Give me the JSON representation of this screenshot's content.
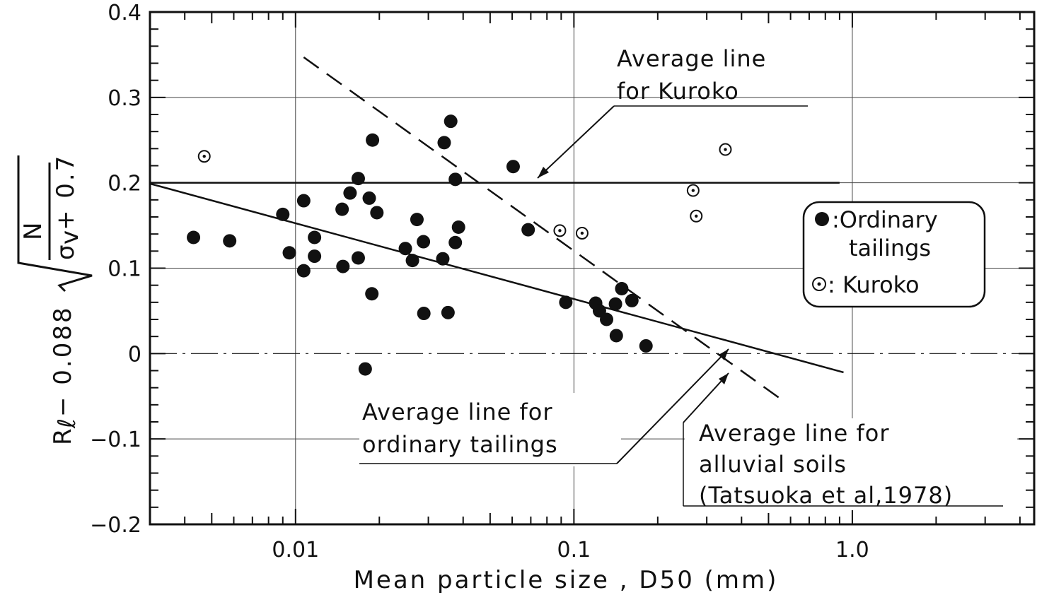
{
  "chart_data": {
    "type": "scatter",
    "xscale": "log",
    "xlim": [
      0.003,
      4.5
    ],
    "ylim": [
      -0.2,
      0.4
    ],
    "xlabel": "Mean particle size , D50  (mm)",
    "ylabel_parts": {
      "prefix": "R",
      "prefix_sub": "ℓ",
      "minus_coef": "− 0.088",
      "numerator": "N",
      "denominator_sigma": "σ",
      "denominator_sub": "v",
      "denominator_tail": "+ 0.7"
    },
    "xticks": [
      {
        "value": 0.01,
        "label": "0.01"
      },
      {
        "value": 0.1,
        "label": "0.1"
      },
      {
        "value": 1.0,
        "label": "1.0"
      }
    ],
    "yticks": [
      {
        "value": 0.4,
        "label": "0.4"
      },
      {
        "value": 0.3,
        "label": "0.3"
      },
      {
        "value": 0.2,
        "label": "0.2"
      },
      {
        "value": 0.1,
        "label": "0.1"
      },
      {
        "value": 0.0,
        "label": "0"
      },
      {
        "value": -0.1,
        "label": "−0.1"
      },
      {
        "value": -0.2,
        "label": "−0.2"
      }
    ],
    "grid": false,
    "series": [
      {
        "name": "Ordinary tailings",
        "marker": "filled-circle",
        "points": [
          [
            0.0043,
            0.136
          ],
          [
            0.0058,
            0.132
          ],
          [
            0.009,
            0.163
          ],
          [
            0.0095,
            0.118
          ],
          [
            0.0107,
            0.179
          ],
          [
            0.0107,
            0.097
          ],
          [
            0.0117,
            0.136
          ],
          [
            0.0117,
            0.114
          ],
          [
            0.0147,
            0.169
          ],
          [
            0.0148,
            0.102
          ],
          [
            0.0157,
            0.188
          ],
          [
            0.0168,
            0.205
          ],
          [
            0.0168,
            0.112
          ],
          [
            0.0178,
            -0.018
          ],
          [
            0.0184,
            0.182
          ],
          [
            0.0188,
            0.07
          ],
          [
            0.0189,
            0.25
          ],
          [
            0.0196,
            0.165
          ],
          [
            0.0248,
            0.123
          ],
          [
            0.0263,
            0.109
          ],
          [
            0.0273,
            0.157
          ],
          [
            0.0288,
            0.131
          ],
          [
            0.0289,
            0.047
          ],
          [
            0.0338,
            0.111
          ],
          [
            0.0342,
            0.247
          ],
          [
            0.0353,
            0.048
          ],
          [
            0.0361,
            0.272
          ],
          [
            0.0375,
            0.13
          ],
          [
            0.0375,
            0.204
          ],
          [
            0.0385,
            0.148
          ],
          [
            0.0605,
            0.219
          ],
          [
            0.0685,
            0.145
          ],
          [
            0.0935,
            0.06
          ],
          [
            0.1197,
            0.059
          ],
          [
            0.1235,
            0.05
          ],
          [
            0.131,
            0.04
          ],
          [
            0.141,
            0.058
          ],
          [
            0.142,
            0.021
          ],
          [
            0.1485,
            0.076
          ],
          [
            0.1615,
            0.062
          ],
          [
            0.1815,
            0.009
          ]
        ]
      },
      {
        "name": "Kuroko",
        "marker": "dotted-circle",
        "points": [
          [
            0.0047,
            0.231
          ],
          [
            0.089,
            0.144
          ],
          [
            0.107,
            0.141
          ],
          [
            0.268,
            0.191
          ],
          [
            0.275,
            0.161
          ],
          [
            0.35,
            0.239
          ]
        ]
      }
    ],
    "lines": [
      {
        "name": "Average line for Kuroko",
        "style": "solid",
        "from": [
          0.003,
          0.2
        ],
        "to": [
          0.9,
          0.2
        ]
      },
      {
        "name": "Average line for ordinary tailings",
        "style": "solid",
        "from": [
          0.003,
          0.199
        ],
        "to": [
          0.93,
          -0.022
        ]
      },
      {
        "name": "Average line for alluvial soils (Tatsuoka et al,1978)",
        "style": "dashed",
        "from": [
          0.0107,
          0.347
        ],
        "to": [
          0.58,
          -0.058
        ]
      },
      {
        "name": "zero reference",
        "style": "dash-dot",
        "from": [
          0.003,
          0.0
        ],
        "to": [
          4.5,
          0.0
        ]
      }
    ],
    "annotations": [
      {
        "id": "kuroko",
        "lines": [
          "Average line",
          "for Kuroko"
        ]
      },
      {
        "id": "tailings",
        "lines": [
          "Average line for",
          "ordinary tailings"
        ]
      },
      {
        "id": "alluvial",
        "lines": [
          "Average line for",
          "alluvial soils",
          "(Tatsuoka et al,1978)"
        ]
      }
    ],
    "legend": {
      "placement": "right",
      "entries": [
        {
          "marker": "filled-circle",
          "lines": [
            ":Ordinary",
            "tailings"
          ]
        },
        {
          "marker": "dotted-circle",
          "lines": [
            ": Kuroko"
          ]
        }
      ]
    }
  }
}
